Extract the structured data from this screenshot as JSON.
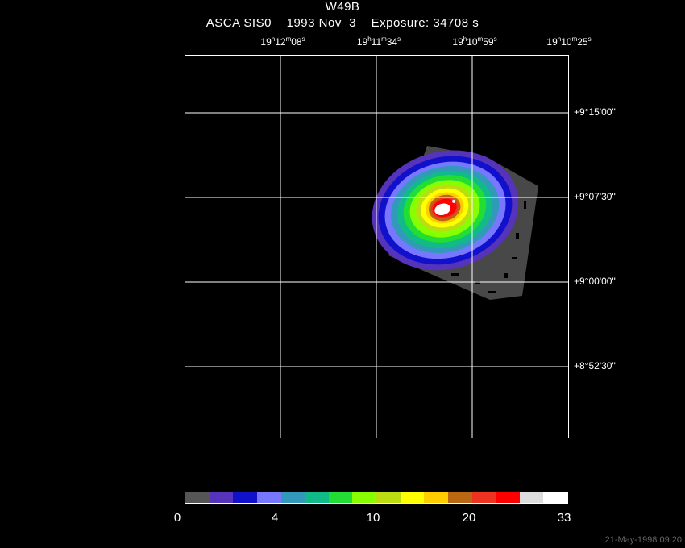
{
  "header": {
    "title": "W49B",
    "subtitle": "ASCA SIS0    1993 Nov  3    Exposure: 34708 s"
  },
  "ra_axis": [
    {
      "h": "19",
      "m": "12",
      "s": "08"
    },
    {
      "h": "19",
      "m": "11",
      "s": "34"
    },
    {
      "h": "19",
      "m": "10",
      "s": "59"
    },
    {
      "h": "19",
      "m": "10",
      "s": "25"
    }
  ],
  "dec_axis": [
    "+9°15'00\"",
    "+9°07'30\"",
    "+9°00'00\"",
    "+8°52'30\""
  ],
  "colorbar": {
    "colors": [
      "#555555",
      "#5533bb",
      "#1111cc",
      "#7777ff",
      "#3399bb",
      "#11bb88",
      "#22dd33",
      "#88ff00",
      "#bbdd11",
      "#ffff00",
      "#ffcc00",
      "#bb6611",
      "#ee3322",
      "#ff0000",
      "#dddddd",
      "#ffffff"
    ],
    "labels": [
      "0",
      "4",
      "10",
      "20",
      "33"
    ]
  },
  "footer": {
    "timestamp": "21-May-1998 09:20"
  }
}
